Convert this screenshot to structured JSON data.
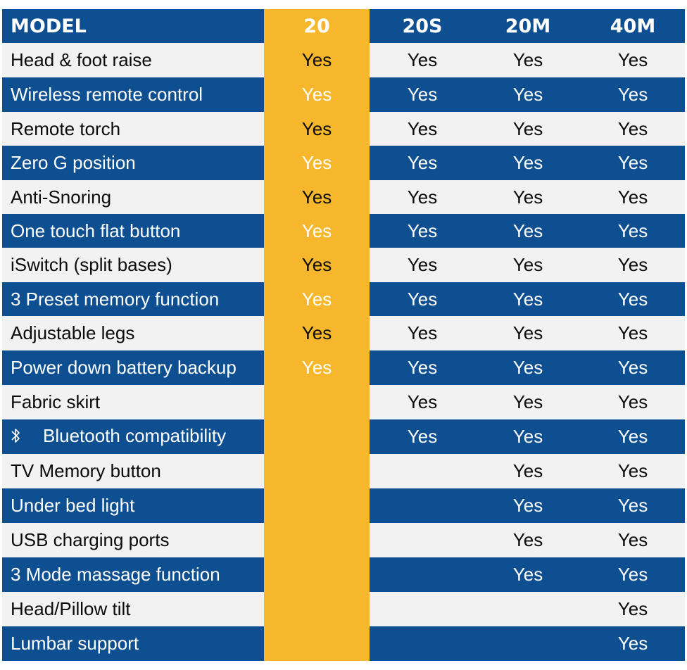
{
  "table": {
    "columns": [
      "MODEL",
      "20",
      "20S",
      "20M",
      "40M"
    ],
    "highlight_column": "20",
    "rows": [
      {
        "feature": "Head & foot raise",
        "icon": null,
        "values": [
          "Yes",
          "Yes",
          "Yes",
          "Yes"
        ]
      },
      {
        "feature": "Wireless remote control",
        "icon": null,
        "values": [
          "Yes",
          "Yes",
          "Yes",
          "Yes"
        ]
      },
      {
        "feature": "Remote torch",
        "icon": null,
        "values": [
          "Yes",
          "Yes",
          "Yes",
          "Yes"
        ]
      },
      {
        "feature": "Zero G position",
        "icon": null,
        "values": [
          "Yes",
          "Yes",
          "Yes",
          "Yes"
        ]
      },
      {
        "feature": "Anti-Snoring",
        "icon": null,
        "values": [
          "Yes",
          "Yes",
          "Yes",
          "Yes"
        ]
      },
      {
        "feature": "One touch flat button",
        "icon": null,
        "values": [
          "Yes",
          "Yes",
          "Yes",
          "Yes"
        ]
      },
      {
        "feature": "iSwitch (split bases)",
        "icon": null,
        "values": [
          "Yes",
          "Yes",
          "Yes",
          "Yes"
        ]
      },
      {
        "feature": "3 Preset memory function",
        "icon": null,
        "values": [
          "Yes",
          "Yes",
          "Yes",
          "Yes"
        ]
      },
      {
        "feature": "Adjustable legs",
        "icon": null,
        "values": [
          "Yes",
          "Yes",
          "Yes",
          "Yes"
        ]
      },
      {
        "feature": "Power down battery backup",
        "icon": null,
        "values": [
          "Yes",
          "Yes",
          "Yes",
          "Yes"
        ]
      },
      {
        "feature": "Fabric skirt",
        "icon": null,
        "values": [
          "",
          "Yes",
          "Yes",
          "Yes"
        ]
      },
      {
        "feature": "Bluetooth compatibility",
        "icon": "bluetooth-icon",
        "values": [
          "",
          "Yes",
          "Yes",
          "Yes"
        ]
      },
      {
        "feature": "TV Memory button",
        "icon": null,
        "values": [
          "",
          "",
          "Yes",
          "Yes"
        ]
      },
      {
        "feature": "Under bed light",
        "icon": null,
        "values": [
          "",
          "",
          "Yes",
          "Yes"
        ]
      },
      {
        "feature": "USB charging ports",
        "icon": null,
        "values": [
          "",
          "",
          "Yes",
          "Yes"
        ]
      },
      {
        "feature": "3 Mode massage function",
        "icon": null,
        "values": [
          "",
          "",
          "Yes",
          "Yes"
        ]
      },
      {
        "feature": "Head/Pillow tilt",
        "icon": null,
        "values": [
          "",
          "",
          "",
          "Yes"
        ]
      },
      {
        "feature": "Lumbar support",
        "icon": null,
        "values": [
          "",
          "",
          "",
          "Yes"
        ]
      }
    ]
  },
  "colors": {
    "header_blue": "#0d4f91",
    "light_row": "#f2f2f2",
    "highlight_yellow": "#f7b72c"
  }
}
